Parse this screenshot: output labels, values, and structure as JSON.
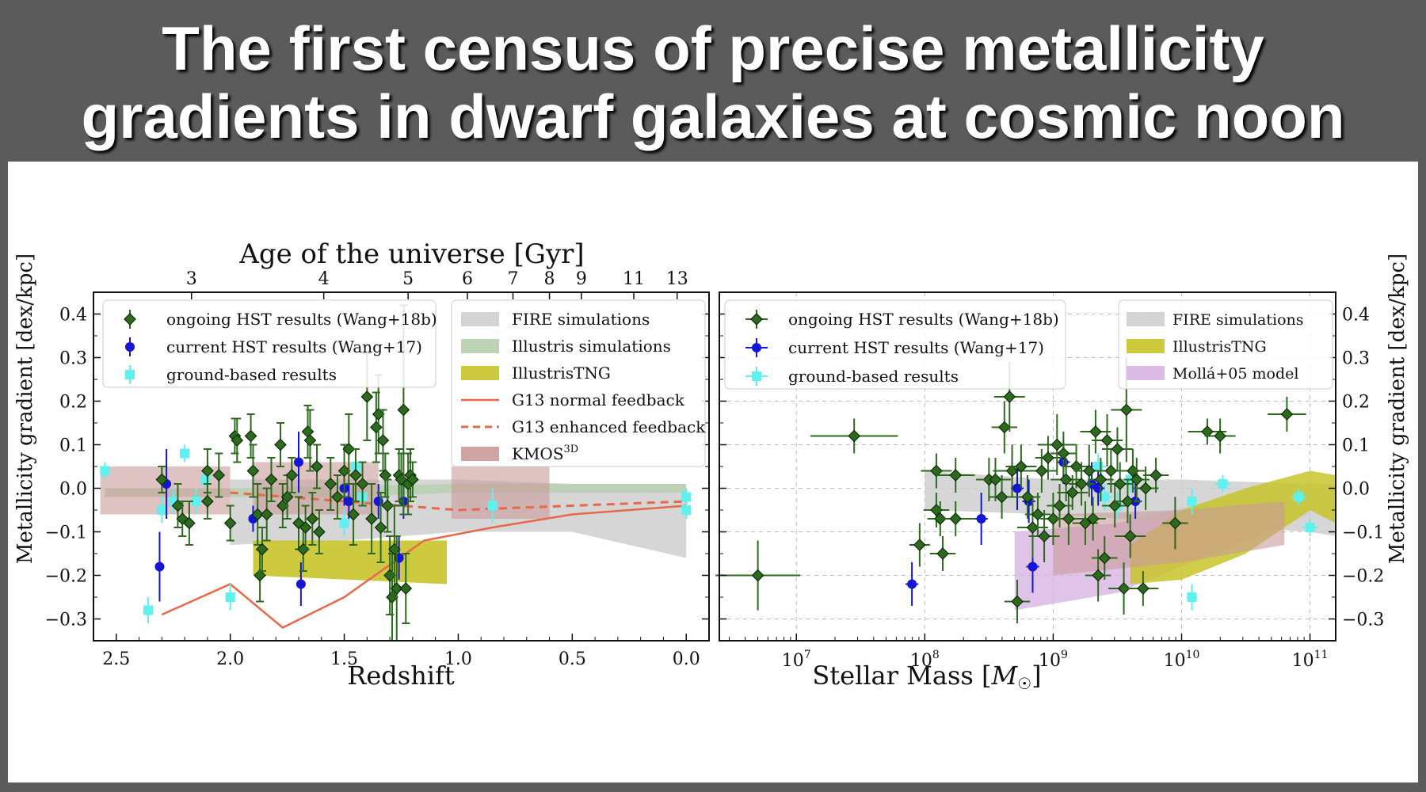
{
  "slide": {
    "title_line1": "The first census of precise metallicity",
    "title_line2": "gradients in dwarf galaxies at cosmic noon"
  },
  "colors": {
    "ongoing": "#2d6a1e",
    "current": "#1515d6",
    "ground": "#5ff0f0",
    "fire": "#cfcfcf",
    "illustris": "#b7cfae",
    "tng": "#c8c42a",
    "g13": "#e8684a",
    "kmos": "#c99a9a",
    "molla": "#d8b4e2"
  },
  "chart_data": [
    {
      "type": "scatter",
      "id": "left",
      "xlabel": "Redshift",
      "ylabel": "Metallicity gradient [dex/kpc]",
      "top_label": "Age of the universe [Gyr]",
      "xlim": [
        2.6,
        -0.1
      ],
      "ylim": [
        -0.35,
        0.45
      ],
      "xticks": [
        2.5,
        2.0,
        1.5,
        1.0,
        0.5,
        0.0
      ],
      "xtick_labels": [
        "2.5",
        "2.0",
        "1.5",
        "1.0",
        "0.5",
        "0.0"
      ],
      "yticks": [
        0.4,
        0.3,
        0.2,
        0.1,
        0.0,
        -0.1,
        -0.2,
        -0.3
      ],
      "ytick_labels": [
        "0.4",
        "0.3",
        "0.2",
        "0.1",
        "0.0",
        "−0.1",
        "−0.2",
        "−0.3"
      ],
      "top_ticks": [
        {
          "z": 2.17,
          "label": "3"
        },
        {
          "z": 1.59,
          "label": "4"
        },
        {
          "z": 1.22,
          "label": "5"
        },
        {
          "z": 0.96,
          "label": "6"
        },
        {
          "z": 0.76,
          "label": "7"
        },
        {
          "z": 0.6,
          "label": "8"
        },
        {
          "z": 0.46,
          "label": "9"
        },
        {
          "z": 0.23,
          "label": "11"
        },
        {
          "z": 0.04,
          "label": "13"
        }
      ],
      "legend_left": [
        "ongoing HST results (Wang+18b)",
        "current HST results (Wang+17)",
        "ground-based results"
      ],
      "legend_right": [
        "FIRE simulations",
        "Illustris simulations",
        "IllustrisTNG",
        "G13 normal feedback",
        "G13 enhanced feedback",
        "KMOS3D"
      ],
      "ongoing": [
        [
          2.3,
          0.02,
          0.03
        ],
        [
          2.23,
          -0.04,
          0.05
        ],
        [
          2.21,
          -0.07,
          0.04
        ],
        [
          2.18,
          -0.08,
          0.05
        ],
        [
          2.1,
          -0.03,
          0.04
        ],
        [
          2.1,
          0.04,
          0.05
        ],
        [
          2.05,
          0.03,
          0.05
        ],
        [
          2.0,
          -0.08,
          0.04
        ],
        [
          1.98,
          0.12,
          0.04
        ],
        [
          1.97,
          0.11,
          0.05
        ],
        [
          1.91,
          0.12,
          0.05
        ],
        [
          1.9,
          0.04,
          0.06
        ],
        [
          1.88,
          -0.06,
          0.07
        ],
        [
          1.87,
          -0.2,
          0.06
        ],
        [
          1.86,
          -0.14,
          0.05
        ],
        [
          1.84,
          -0.06,
          0.06
        ],
        [
          1.82,
          0.02,
          0.05
        ],
        [
          1.78,
          0.1,
          0.05
        ],
        [
          1.77,
          -0.04,
          0.05
        ],
        [
          1.75,
          -0.02,
          0.05
        ],
        [
          1.73,
          0.03,
          0.04
        ],
        [
          1.7,
          -0.08,
          0.06
        ],
        [
          1.68,
          -0.14,
          0.05
        ],
        [
          1.67,
          -0.09,
          0.05
        ],
        [
          1.66,
          0.13,
          0.06
        ],
        [
          1.65,
          0.11,
          0.07
        ],
        [
          1.64,
          -0.07,
          0.06
        ],
        [
          1.62,
          0.05,
          0.05
        ],
        [
          1.61,
          -0.1,
          0.05
        ],
        [
          1.56,
          0.01,
          0.06
        ],
        [
          1.53,
          -0.02,
          0.05
        ],
        [
          1.5,
          0.04,
          0.06
        ],
        [
          1.48,
          0.09,
          0.08
        ],
        [
          1.46,
          -0.06,
          0.07
        ],
        [
          1.45,
          0.03,
          0.06
        ],
        [
          1.42,
          0.01,
          0.05
        ],
        [
          1.4,
          0.21,
          0.1
        ],
        [
          1.38,
          -0.07,
          0.08
        ],
        [
          1.36,
          0.14,
          0.08
        ],
        [
          1.35,
          0.17,
          0.09
        ],
        [
          1.34,
          -0.09,
          0.08
        ],
        [
          1.33,
          0.11,
          0.07
        ],
        [
          1.32,
          0.03,
          0.05
        ],
        [
          1.31,
          -0.04,
          0.06
        ],
        [
          1.3,
          -0.2,
          0.09
        ],
        [
          1.29,
          -0.25,
          0.1
        ],
        [
          1.28,
          -0.14,
          0.1
        ],
        [
          1.27,
          -0.23,
          0.12
        ],
        [
          1.26,
          0.03,
          0.06
        ],
        [
          1.25,
          0.02,
          0.06
        ],
        [
          1.24,
          0.18,
          0.24
        ],
        [
          1.23,
          -0.23,
          0.08
        ],
        [
          1.22,
          0.01,
          0.07
        ],
        [
          1.21,
          0.03,
          0.06
        ],
        [
          1.2,
          0.02,
          0.04
        ]
      ],
      "current": [
        [
          2.31,
          -0.18,
          0.08
        ],
        [
          2.28,
          0.01,
          0.08
        ],
        [
          1.9,
          -0.07,
          0.03
        ],
        [
          1.7,
          0.06,
          0.07
        ],
        [
          1.69,
          -0.22,
          0.05
        ],
        [
          1.5,
          0.0,
          0.04
        ],
        [
          1.48,
          -0.03,
          0.04
        ],
        [
          1.35,
          -0.03,
          0.04
        ],
        [
          1.26,
          -0.16,
          0.05
        ],
        [
          1.24,
          -0.03,
          0.04
        ]
      ],
      "ground": [
        [
          2.55,
          0.04,
          0.02
        ],
        [
          2.36,
          -0.28,
          0.03
        ],
        [
          2.3,
          -0.05,
          0.03
        ],
        [
          2.25,
          -0.03,
          0.03
        ],
        [
          2.2,
          0.08,
          0.02
        ],
        [
          2.15,
          -0.03,
          0.03
        ],
        [
          2.11,
          0.02,
          0.02
        ],
        [
          2.0,
          -0.25,
          0.03
        ],
        [
          1.5,
          -0.08,
          0.03
        ],
        [
          1.45,
          0.05,
          0.02
        ],
        [
          1.42,
          -0.02,
          0.03
        ],
        [
          0.85,
          -0.04,
          0.04
        ],
        [
          0.0,
          -0.02,
          0.02
        ],
        [
          0.0,
          -0.05,
          0.02
        ]
      ],
      "fire_band": {
        "x": [
          2.0,
          1.5,
          1.0,
          0.5,
          0.0
        ],
        "upper": [
          0.02,
          0.02,
          0.02,
          0.01,
          0.01
        ],
        "lower": [
          -0.13,
          -0.12,
          -0.1,
          -0.1,
          -0.16
        ]
      },
      "illustris_band": {
        "x": [
          2.55,
          2.0,
          1.5,
          1.0,
          0.5,
          0.0
        ],
        "upper": [
          0.0,
          0.0,
          0.005,
          0.01,
          0.01,
          0.01
        ],
        "lower": [
          -0.02,
          -0.02,
          -0.02,
          -0.01,
          -0.01,
          -0.01
        ]
      },
      "tng_band": {
        "x": [
          1.9,
          1.05
        ],
        "upper": [
          -0.12,
          -0.12
        ],
        "lower": [
          -0.2,
          -0.22
        ]
      },
      "kmos_boxes": [
        {
          "x": [
            2.57,
            2.0
          ],
          "y": [
            -0.06,
            0.05
          ]
        },
        {
          "x": [
            1.9,
            1.35
          ],
          "y": [
            -0.06,
            0.06
          ]
        },
        {
          "x": [
            1.03,
            0.6
          ],
          "y": [
            -0.07,
            0.05
          ]
        }
      ],
      "g13_normal": {
        "x": [
          2.3,
          2.0,
          1.77,
          1.5,
          1.15,
          0.85,
          0.5,
          0.0
        ],
        "y": [
          -0.29,
          -0.22,
          -0.32,
          -0.25,
          -0.12,
          -0.09,
          -0.06,
          -0.04
        ]
      },
      "g13_enhanced": {
        "x": [
          2.0,
          1.5,
          1.0,
          0.5,
          0.0
        ],
        "y": [
          -0.01,
          -0.03,
          -0.05,
          -0.04,
          -0.03
        ]
      }
    },
    {
      "type": "scatter",
      "id": "right",
      "xlabel": "Stellar Mass [M☉]",
      "ylabel": "Metallicity gradient [dex/kpc]",
      "xscale": "log",
      "xlim": [
        6.4,
        11.2
      ],
      "ylim": [
        -0.35,
        0.45
      ],
      "xticks": [
        7,
        8,
        9,
        10,
        11
      ],
      "xtick_labels": [
        "7",
        "8",
        "9",
        "10",
        "11"
      ],
      "yticks": [
        0.4,
        0.3,
        0.2,
        0.1,
        0.0,
        -0.1,
        -0.2,
        -0.3
      ],
      "ytick_labels": [
        "0.4",
        "0.3",
        "0.2",
        "0.1",
        "0.0",
        "−0.1",
        "−0.2",
        "−0.3"
      ],
      "legend_left": [
        "ongoing HST results (Wang+18b)",
        "current HST results (Wang+17)",
        "ground-based results"
      ],
      "legend_right": [
        "FIRE simulations",
        "IllustrisTNG",
        "Mollá+05 model"
      ],
      "ongoing": [
        [
          6.7,
          -0.2,
          0.33,
          0.08
        ],
        [
          7.45,
          0.12,
          0.34,
          0.04
        ],
        [
          7.96,
          -0.13,
          0.08,
          0.05
        ],
        [
          8.09,
          0.04,
          0.12,
          0.04
        ],
        [
          8.09,
          -0.05,
          0.1,
          0.04
        ],
        [
          8.12,
          -0.07,
          0.1,
          0.04
        ],
        [
          8.14,
          -0.15,
          0.1,
          0.04
        ],
        [
          8.24,
          0.03,
          0.15,
          0.04
        ],
        [
          8.24,
          -0.07,
          0.15,
          0.04
        ],
        [
          8.5,
          0.02,
          0.1,
          0.05
        ],
        [
          8.55,
          0.02,
          0.12,
          0.05
        ],
        [
          8.6,
          -0.02,
          0.1,
          0.05
        ],
        [
          8.62,
          0.14,
          0.1,
          0.06
        ],
        [
          8.66,
          0.21,
          0.12,
          0.08
        ],
        [
          8.68,
          0.04,
          0.15,
          0.06
        ],
        [
          8.72,
          -0.26,
          0.1,
          0.05
        ],
        [
          8.75,
          0.05,
          0.12,
          0.05
        ],
        [
          8.8,
          -0.02,
          0.1,
          0.05
        ],
        [
          8.84,
          -0.09,
          0.12,
          0.07
        ],
        [
          8.88,
          -0.06,
          0.1,
          0.05
        ],
        [
          8.91,
          0.04,
          0.12,
          0.05
        ],
        [
          8.93,
          -0.11,
          0.12,
          0.06
        ],
        [
          8.96,
          0.07,
          0.1,
          0.05
        ],
        [
          9.0,
          -0.07,
          0.1,
          0.06
        ],
        [
          9.03,
          0.1,
          0.15,
          0.07
        ],
        [
          9.05,
          -0.04,
          0.1,
          0.05
        ],
        [
          9.08,
          0.08,
          0.1,
          0.05
        ],
        [
          9.1,
          0.02,
          0.12,
          0.05
        ],
        [
          9.12,
          -0.07,
          0.1,
          0.06
        ],
        [
          9.15,
          -0.01,
          0.12,
          0.04
        ],
        [
          9.18,
          0.05,
          0.1,
          0.05
        ],
        [
          9.22,
          0.01,
          0.1,
          0.05
        ],
        [
          9.25,
          -0.08,
          0.1,
          0.05
        ],
        [
          9.28,
          0.04,
          0.12,
          0.06
        ],
        [
          9.31,
          -0.07,
          0.1,
          0.05
        ],
        [
          9.33,
          0.13,
          0.12,
          0.05
        ],
        [
          9.35,
          -0.2,
          0.1,
          0.06
        ],
        [
          9.37,
          0.02,
          0.1,
          0.05
        ],
        [
          9.4,
          -0.16,
          0.1,
          0.05
        ],
        [
          9.42,
          0.11,
          0.12,
          0.06
        ],
        [
          9.45,
          0.04,
          0.1,
          0.05
        ],
        [
          9.48,
          -0.04,
          0.1,
          0.05
        ],
        [
          9.5,
          0.09,
          0.12,
          0.05
        ],
        [
          9.52,
          0.01,
          0.1,
          0.05
        ],
        [
          9.55,
          -0.23,
          0.12,
          0.06
        ],
        [
          9.57,
          0.18,
          0.12,
          0.12
        ],
        [
          9.58,
          -0.03,
          0.1,
          0.05
        ],
        [
          9.6,
          -0.11,
          0.12,
          0.05
        ],
        [
          9.62,
          0.04,
          0.1,
          0.05
        ],
        [
          9.65,
          0.02,
          0.1,
          0.05
        ],
        [
          9.7,
          -0.23,
          0.12,
          0.04
        ],
        [
          9.72,
          0.0,
          0.1,
          0.05
        ],
        [
          9.8,
          0.03,
          0.1,
          0.04
        ],
        [
          9.95,
          -0.08,
          0.1,
          0.06
        ],
        [
          10.2,
          0.13,
          0.15,
          0.03
        ],
        [
          10.3,
          0.12,
          0.12,
          0.04
        ],
        [
          10.82,
          0.17,
          0.15,
          0.04
        ]
      ],
      "current": [
        [
          7.9,
          -0.22,
          0.05,
          0.05
        ],
        [
          8.44,
          -0.07,
          0.05,
          0.06
        ],
        [
          8.72,
          0.0,
          0.05,
          0.05
        ],
        [
          8.81,
          -0.03,
          0.05,
          0.05
        ],
        [
          8.84,
          -0.18,
          0.05,
          0.06
        ],
        [
          9.08,
          0.06,
          0.05,
          0.05
        ],
        [
          9.3,
          0.01,
          0.05,
          0.05
        ],
        [
          9.35,
          0.0,
          0.05,
          0.04
        ],
        [
          9.64,
          -0.03,
          0.05,
          0.04
        ]
      ],
      "ground": [
        [
          9.35,
          0.05,
          0.06,
          0.03
        ],
        [
          9.4,
          -0.02,
          0.06,
          0.03
        ],
        [
          9.5,
          -0.04,
          0.06,
          0.03
        ],
        [
          9.6,
          0.02,
          0.06,
          0.03
        ],
        [
          10.08,
          -0.25,
          0.04,
          0.03
        ],
        [
          10.08,
          -0.03,
          0.04,
          0.03
        ],
        [
          10.32,
          0.01,
          0.06,
          0.02
        ],
        [
          10.91,
          -0.02,
          0.06,
          0.02
        ],
        [
          11.0,
          -0.09,
          0.06,
          0.02
        ]
      ],
      "fire_band": {
        "x": [
          8.0,
          9.0,
          10.0,
          11.0,
          11.2
        ],
        "upper": [
          0.04,
          0.02,
          0.02,
          0.01,
          0.01
        ],
        "lower": [
          -0.05,
          -0.06,
          -0.08,
          -0.1,
          -0.11
        ]
      },
      "tng_band": {
        "x": [
          9.6,
          10.0,
          10.5,
          11.0,
          11.2
        ],
        "upper": [
          -0.13,
          -0.05,
          0.0,
          0.04,
          0.03
        ],
        "lower": [
          -0.22,
          -0.21,
          -0.15,
          -0.05,
          -0.08
        ]
      },
      "molla_band": {
        "x": [
          8.7,
          9.5,
          10.5,
          11.0
        ],
        "upper": [
          -0.1,
          -0.08,
          -0.01,
          -0.02
        ],
        "lower": [
          -0.28,
          -0.24,
          -0.12,
          -0.06
        ]
      },
      "kmos_band": {
        "x": [
          9.0,
          10.0,
          10.8
        ],
        "upper": [
          -0.06,
          -0.05,
          -0.03
        ],
        "lower": [
          -0.2,
          -0.17,
          -0.13
        ]
      }
    }
  ]
}
